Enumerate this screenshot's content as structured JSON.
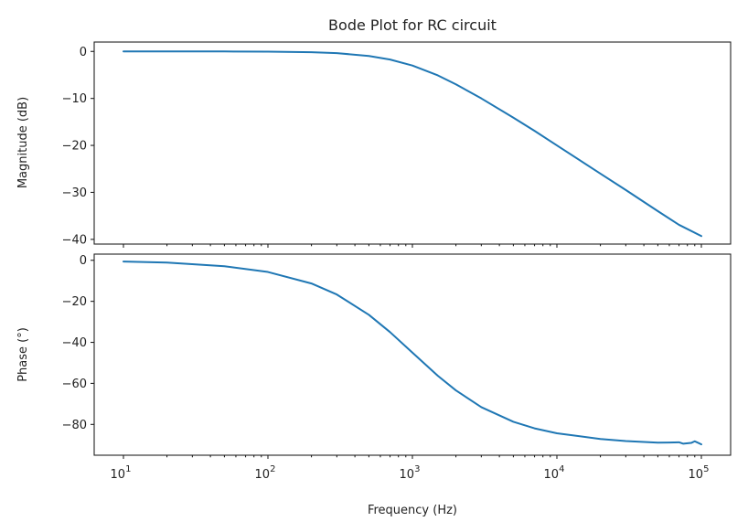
{
  "chart_data": {
    "title": "Bode Plot for RC circuit",
    "xlabel": "Frequency (Hz)",
    "xscale": "log",
    "xlim": [
      10,
      100000
    ],
    "x_tick_labels": [
      "10^1",
      "10^2",
      "10^3",
      "10^4",
      "10^5"
    ],
    "color": "#1f77b4",
    "grid": false,
    "panels": [
      {
        "type": "line",
        "ylabel": "Magnitude (dB)",
        "ylim": [
          -41,
          2
        ],
        "y_ticks": [
          0,
          -10,
          -20,
          -30,
          -40
        ],
        "y_tick_labels": [
          "0",
          "−10",
          "−20",
          "−30",
          "−40"
        ],
        "series": [
          {
            "x": [
              10,
              20,
              50,
              100,
              200,
              300,
              500,
              700,
              1000,
              1500,
              2000,
              3000,
              5000,
              7000,
              10000,
              20000,
              30000,
              50000,
              70000,
              100000
            ],
            "values": [
              0.0,
              0.0,
              0.0,
              -0.04,
              -0.17,
              -0.35,
              -0.97,
              -1.72,
              -3.0,
              -5.1,
              -7.0,
              -10.0,
              -14.1,
              -16.9,
              -20.0,
              -26.0,
              -29.5,
              -34.0,
              -36.9,
              -39.3
            ]
          }
        ]
      },
      {
        "type": "line",
        "ylabel": "Phase (°)",
        "ylim": [
          -95,
          3
        ],
        "y_ticks": [
          0,
          -20,
          -40,
          -60,
          -80
        ],
        "y_tick_labels": [
          "0",
          "−20",
          "−40",
          "−60",
          "−80"
        ],
        "series": [
          {
            "x": [
              10,
              20,
              50,
              100,
              200,
              300,
              500,
              700,
              1000,
              1500,
              2000,
              3000,
              5000,
              7000,
              10000,
              20000,
              30000,
              50000,
              60000,
              70000,
              75000,
              85000,
              90000,
              100000
            ],
            "values": [
              -0.6,
              -1.1,
              -2.9,
              -5.7,
              -11.3,
              -16.7,
              -26.6,
              -35.0,
              -45.0,
              -56.3,
              -63.4,
              -71.6,
              -78.7,
              -81.9,
              -84.3,
              -87.1,
              -88.1,
              -88.9,
              -88.8,
              -88.7,
              -89.4,
              -89.0,
              -88.2,
              -89.7
            ]
          }
        ]
      }
    ]
  }
}
